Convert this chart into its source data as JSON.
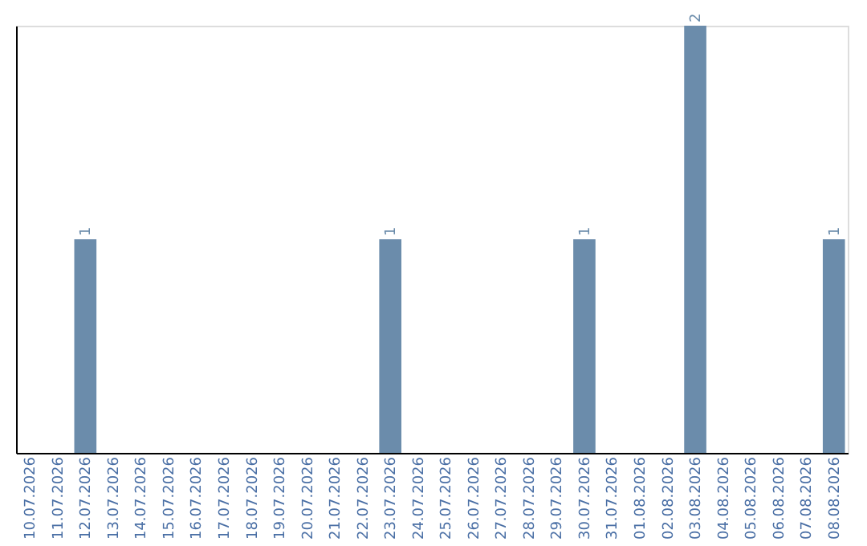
{
  "chart_data": {
    "type": "bar",
    "categories": [
      "10.07.2026",
      "11.07.2026",
      "12.07.2026",
      "13.07.2026",
      "14.07.2026",
      "15.07.2026",
      "16.07.2026",
      "17.07.2026",
      "18.07.2026",
      "19.07.2026",
      "20.07.2026",
      "21.07.2026",
      "22.07.2026",
      "23.07.2026",
      "24.07.2026",
      "25.07.2026",
      "26.07.2026",
      "27.07.2026",
      "28.07.2026",
      "29.07.2026",
      "30.07.2026",
      "31.07.2026",
      "01.08.2026",
      "02.08.2026",
      "03.08.2026",
      "04.08.2026",
      "05.08.2026",
      "06.08.2026",
      "07.08.2026",
      "08.08.2026"
    ],
    "values": [
      0,
      0,
      1,
      0,
      0,
      0,
      0,
      0,
      0,
      0,
      0,
      0,
      0,
      1,
      0,
      0,
      0,
      0,
      0,
      0,
      1,
      0,
      0,
      0,
      2,
      0,
      0,
      0,
      0,
      1
    ],
    "value_labels": [
      null,
      null,
      "1",
      null,
      null,
      null,
      null,
      null,
      null,
      null,
      null,
      null,
      null,
      "1",
      null,
      null,
      null,
      null,
      null,
      null,
      "1",
      null,
      null,
      null,
      "2",
      null,
      null,
      null,
      null,
      "1"
    ],
    "color": "#6b8cab",
    "ylim": [
      0,
      2
    ],
    "tick_labels": "x",
    "grid": false
  }
}
